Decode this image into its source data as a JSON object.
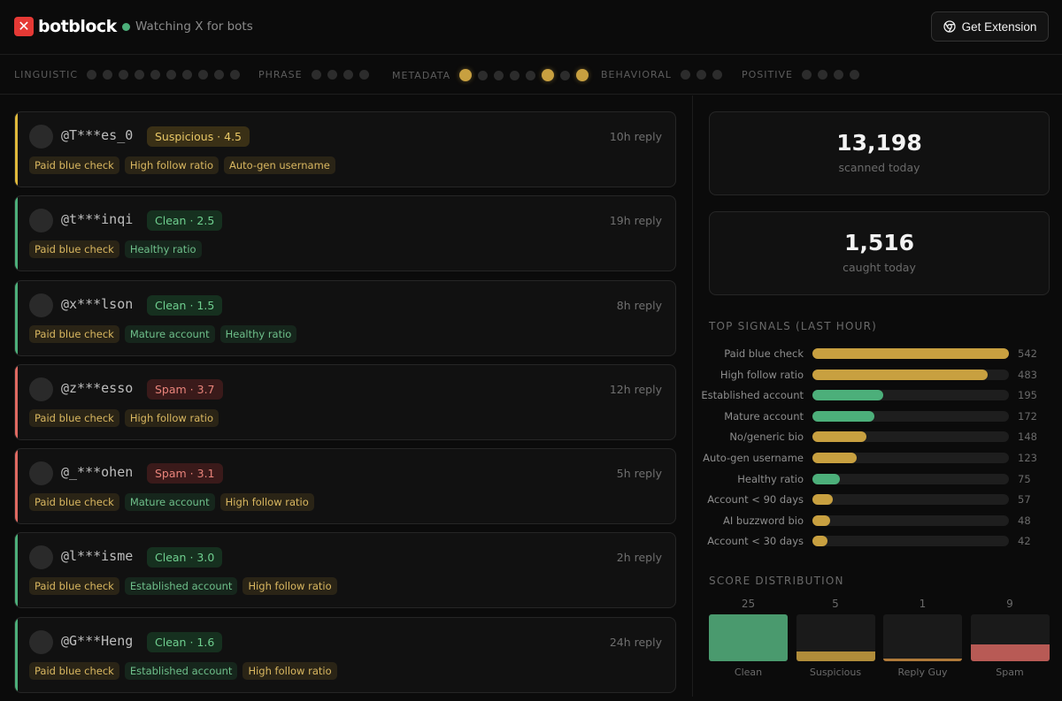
{
  "header": {
    "logo_mark": "✕",
    "logo_text": "botblock",
    "status_text": "Watching X for bots",
    "extension_button": "Get Extension",
    "accent": "#e53935",
    "status_color": "#4caf7a"
  },
  "signal_groups": [
    {
      "label": "LINGUISTIC",
      "dots": [
        0,
        0,
        0,
        0,
        0,
        0,
        0,
        0,
        0,
        0
      ]
    },
    {
      "label": "PHRASE",
      "dots": [
        0,
        0,
        0,
        0
      ]
    },
    {
      "label": "METADATA",
      "dots": [
        1,
        0,
        0,
        0,
        0,
        1,
        0,
        1
      ]
    },
    {
      "label": "BEHAVIORAL",
      "dots": [
        0,
        0,
        0
      ]
    },
    {
      "label": "POSITIVE",
      "dots": [
        0,
        0,
        0,
        0
      ]
    }
  ],
  "feed": [
    {
      "handle": "@T***es_0",
      "status": "suspicious",
      "badge": "Suspicious · 4.5",
      "time": "10h reply",
      "tags": [
        {
          "text": "Paid blue check",
          "kind": "warn"
        },
        {
          "text": "High follow ratio",
          "kind": "warn"
        },
        {
          "text": "Auto-gen username",
          "kind": "warn"
        }
      ]
    },
    {
      "handle": "@t***inqi",
      "status": "clean",
      "badge": "Clean · 2.5",
      "time": "19h reply",
      "tags": [
        {
          "text": "Paid blue check",
          "kind": "warn"
        },
        {
          "text": "Healthy ratio",
          "kind": "good"
        }
      ]
    },
    {
      "handle": "@x***lson",
      "status": "clean",
      "badge": "Clean · 1.5",
      "time": "8h reply",
      "tags": [
        {
          "text": "Paid blue check",
          "kind": "warn"
        },
        {
          "text": "Mature account",
          "kind": "good"
        },
        {
          "text": "Healthy ratio",
          "kind": "good"
        }
      ]
    },
    {
      "handle": "@z***esso",
      "status": "spam",
      "badge": "Spam · 3.7",
      "time": "12h reply",
      "tags": [
        {
          "text": "Paid blue check",
          "kind": "warn"
        },
        {
          "text": "High follow ratio",
          "kind": "warn"
        }
      ]
    },
    {
      "handle": "@_***ohen",
      "status": "spam",
      "badge": "Spam · 3.1",
      "time": "5h reply",
      "tags": [
        {
          "text": "Paid blue check",
          "kind": "warn"
        },
        {
          "text": "Mature account",
          "kind": "good"
        },
        {
          "text": "High follow ratio",
          "kind": "warn"
        }
      ]
    },
    {
      "handle": "@l***isme",
      "status": "clean",
      "badge": "Clean · 3.0",
      "time": "2h reply",
      "tags": [
        {
          "text": "Paid blue check",
          "kind": "warn"
        },
        {
          "text": "Established account",
          "kind": "good"
        },
        {
          "text": "High follow ratio",
          "kind": "warn"
        }
      ]
    },
    {
      "handle": "@G***Heng",
      "status": "clean",
      "badge": "Clean · 1.6",
      "time": "24h reply",
      "tags": [
        {
          "text": "Paid blue check",
          "kind": "warn"
        },
        {
          "text": "Established account",
          "kind": "good"
        },
        {
          "text": "High follow ratio",
          "kind": "warn"
        }
      ]
    }
  ],
  "status_colors": {
    "suspicious": "#e0b93a",
    "clean": "#4caf7a",
    "spam": "#e06a62"
  },
  "stats": {
    "scanned_value": "13,198",
    "scanned_label": "scanned today",
    "caught_value": "1,516",
    "caught_label": "caught today"
  },
  "top_signals": {
    "title": "TOP SIGNALS (LAST HOUR)",
    "max": 542,
    "rows": [
      {
        "label": "Paid blue check",
        "value": 542,
        "color": "#c8a040"
      },
      {
        "label": "High follow ratio",
        "value": 483,
        "color": "#c8a040"
      },
      {
        "label": "Established account",
        "value": 195,
        "color": "#4caf7a"
      },
      {
        "label": "Mature account",
        "value": 172,
        "color": "#4caf7a"
      },
      {
        "label": "No/generic bio",
        "value": 148,
        "color": "#c8a040"
      },
      {
        "label": "Auto-gen username",
        "value": 123,
        "color": "#c8a040"
      },
      {
        "label": "Healthy ratio",
        "value": 75,
        "color": "#4caf7a"
      },
      {
        "label": "Account < 90 days",
        "value": 57,
        "color": "#c8a040"
      },
      {
        "label": "AI buzzword bio",
        "value": 48,
        "color": "#c8a040"
      },
      {
        "label": "Account < 30 days",
        "value": 42,
        "color": "#c8a040"
      }
    ]
  },
  "score_distribution": {
    "title": "SCORE DISTRIBUTION",
    "max": 25,
    "bins": [
      {
        "label": "Clean",
        "value": 25,
        "color": "#4a9a6e"
      },
      {
        "label": "Suspicious",
        "value": 5,
        "color": "#b08c3a"
      },
      {
        "label": "Reply Guy",
        "value": 1,
        "color": "#b07a3a"
      },
      {
        "label": "Spam",
        "value": 9,
        "color": "#b85a55"
      }
    ]
  }
}
